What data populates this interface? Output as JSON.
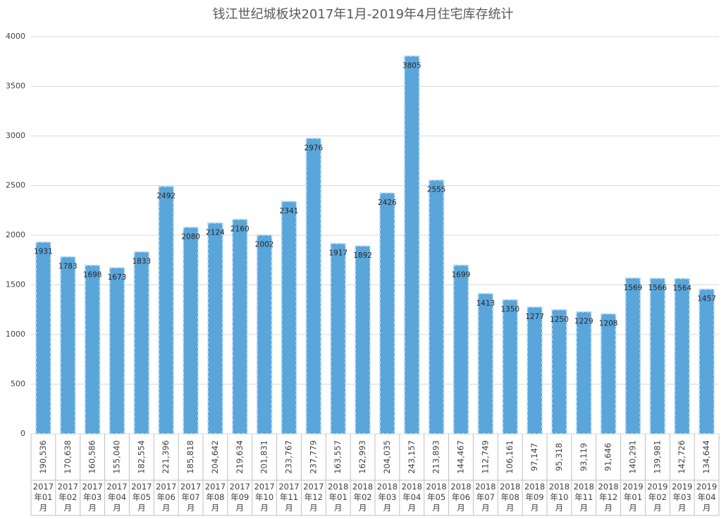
{
  "chart_data": {
    "type": "bar",
    "title": "钱江世纪城板块2017年1月-2019年4月住宅库存统计",
    "categories": [
      "2017年01月",
      "2017年02月",
      "2017年03月",
      "2017年04月",
      "2017年05月",
      "2017年06月",
      "2017年07月",
      "2017年08月",
      "2017年09月",
      "2017年10月",
      "2017年11月",
      "2017年12月",
      "2018年01月",
      "2018年02月",
      "2018年03月",
      "2018年04月",
      "2018年05月",
      "2018年06月",
      "2018年07月",
      "2018年08月",
      "2018年09月",
      "2018年10月",
      "2018年11月",
      "2018年12月",
      "2019年01月",
      "2019年02月",
      "2019年03月",
      "2019年04月"
    ],
    "values": [
      1931,
      1783,
      1698,
      1673,
      1833,
      2492,
      2080,
      2124,
      2160,
      2002,
      2341,
      2976,
      1917,
      1892,
      2426,
      3805,
      2555,
      1699,
      1413,
      1350,
      1277,
      1250,
      1229,
      1208,
      1569,
      1566,
      1564,
      1457
    ],
    "table_row": [
      "190,536",
      "170,638",
      "160,586",
      "155,040",
      "182,554",
      "221,396",
      "185,818",
      "204,642",
      "219,634",
      "201,831",
      "233,767",
      "237,779",
      "163,557",
      "162,993",
      "204,035",
      "243,157",
      "213,893",
      "144,467",
      "112,749",
      "106,161",
      "97,147",
      "95,318",
      "93,119",
      "91,646",
      "140,291",
      "139,981",
      "142,726",
      "134,644"
    ],
    "color": "#5aa5da",
    "ylim": [
      0,
      4000
    ],
    "yticks": [
      0,
      500,
      1000,
      1500,
      2000,
      2500,
      3000,
      3500,
      4000
    ],
    "grid": true
  }
}
